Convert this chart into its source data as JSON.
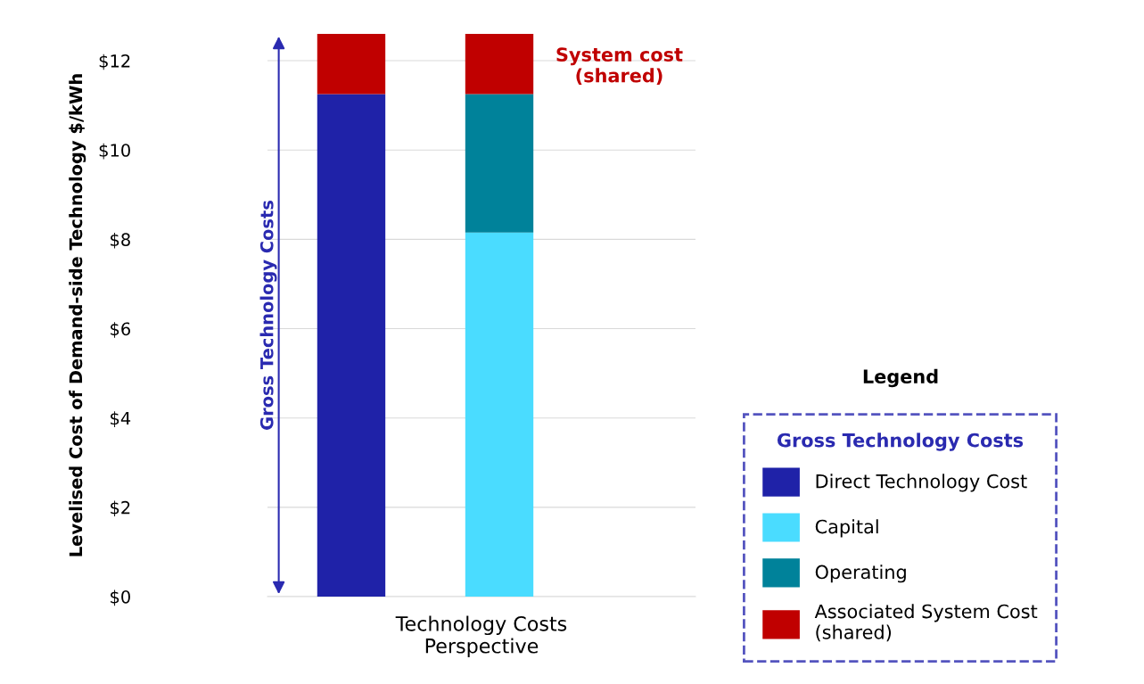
{
  "chart_data": {
    "type": "bar",
    "stacked": true,
    "categories": [
      null,
      null
    ],
    "xlabel": "Technology Costs\nPerspective",
    "ylabel": "Levelised Cost of Demand-side Technology $/kWh",
    "legend_title": "Gross Technology Costs",
    "series": [
      {
        "name": "Direct Technology Cost",
        "color": "#1f22a8",
        "values": [
          11.25,
          null
        ]
      },
      {
        "name": "Capital",
        "color": "#4adcff",
        "values": [
          null,
          8.15
        ]
      },
      {
        "name": "Operating",
        "color": "#00829a",
        "values": [
          null,
          3.1
        ]
      },
      {
        "name": "Associated System Cost\n(shared)",
        "color": "#c00000",
        "values": [
          1.35,
          1.35
        ]
      }
    ],
    "ylim": [
      0,
      12.6
    ],
    "yticks": [
      {
        "value": 0,
        "label": "$0"
      },
      {
        "value": 2,
        "label": "$2"
      },
      {
        "value": 4,
        "label": "$4"
      },
      {
        "value": 6,
        "label": "$6"
      },
      {
        "value": 8,
        "label": "$8"
      },
      {
        "value": 10,
        "label": "$10"
      },
      {
        "value": 12,
        "label": "$12"
      }
    ],
    "grid": "y",
    "legend": "bottom right",
    "annotations": [
      "Gross Technology Costs",
      "System cost\n(shared)",
      "Legend"
    ]
  }
}
